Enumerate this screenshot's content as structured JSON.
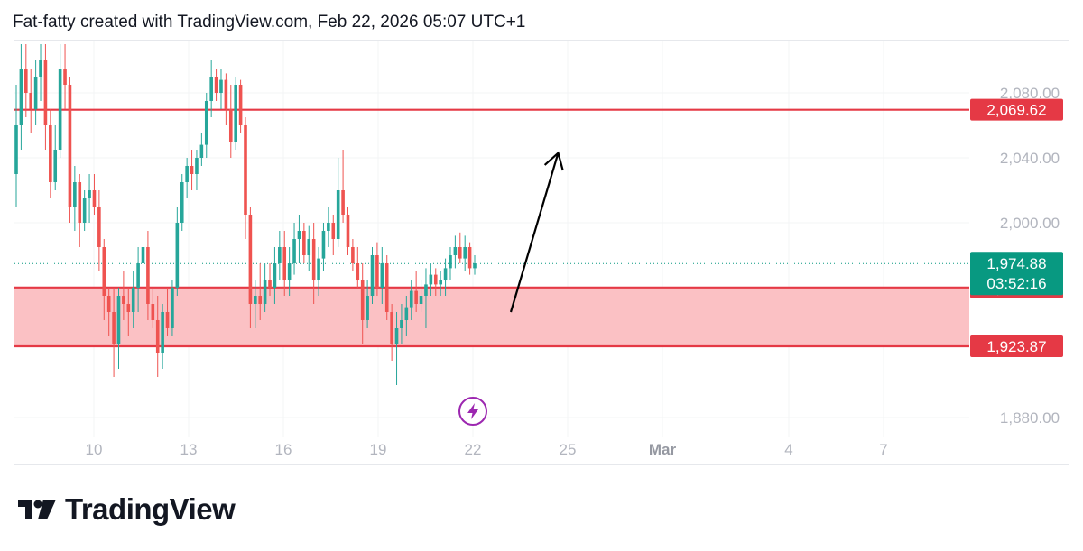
{
  "header": {
    "credit": "Fat-fatty created with TradingView.com, Feb 22, 2026 05:07 UTC+1"
  },
  "footer": {
    "brand": "TradingView"
  },
  "colors": {
    "up": "#26a69a",
    "down": "#ef5350",
    "level_line": "#e53945",
    "zone_fill": "#fbc1c4",
    "current_price": "#089981",
    "arrow": "#000000",
    "event_icon": "#9c27b0"
  },
  "chart_data": {
    "type": "candlestick",
    "y_axis": {
      "ticks": [
        2080,
        2040,
        2000,
        1880
      ],
      "tick_labels": [
        "2,080.00",
        "2,040.00",
        "2,000.00",
        "1,880.00"
      ]
    },
    "x_axis": {
      "tick_labels": [
        "10",
        "13",
        "16",
        "19",
        "22",
        "25",
        "Mar",
        "4",
        "7"
      ],
      "tick_dates": [
        "Feb 10",
        "Feb 13",
        "Feb 16",
        "Feb 19",
        "Feb 22",
        "Feb 25",
        "Mar 1",
        "Mar 4",
        "Mar 7"
      ]
    },
    "levels": [
      {
        "value": 2069.62,
        "label": "2,069.62"
      },
      {
        "value": 1960.11,
        "label": "1,960.11"
      },
      {
        "value": 1923.87,
        "label": "1,923.87"
      }
    ],
    "zone": {
      "top": 1960.11,
      "bottom": 1923.87
    },
    "current_price": {
      "value": 1974.88,
      "label": "1,974.88",
      "countdown": "03:52:16"
    },
    "arrow": {
      "from": {
        "date": "Feb 23.2",
        "value": 1945
      },
      "to": {
        "date": "Feb 24.7",
        "value": 2043
      }
    },
    "candles": [
      {
        "o": 2030,
        "h": 2085,
        "l": 2010,
        "c": 2060
      },
      {
        "o": 2060,
        "h": 2110,
        "l": 2045,
        "c": 2095
      },
      {
        "o": 2095,
        "h": 2110,
        "l": 2065,
        "c": 2080
      },
      {
        "o": 2080,
        "h": 2095,
        "l": 2055,
        "c": 2070
      },
      {
        "o": 2070,
        "h": 2100,
        "l": 2060,
        "c": 2090
      },
      {
        "o": 2090,
        "h": 2110,
        "l": 2075,
        "c": 2100
      },
      {
        "o": 2100,
        "h": 2110,
        "l": 2045,
        "c": 2060
      },
      {
        "o": 2060,
        "h": 2070,
        "l": 2015,
        "c": 2025
      },
      {
        "o": 2025,
        "h": 2060,
        "l": 2020,
        "c": 2045
      },
      {
        "o": 2045,
        "h": 2110,
        "l": 2040,
        "c": 2095
      },
      {
        "o": 2095,
        "h": 2110,
        "l": 2070,
        "c": 2085
      },
      {
        "o": 2085,
        "h": 2090,
        "l": 2000,
        "c": 2010
      },
      {
        "o": 2010,
        "h": 2035,
        "l": 1995,
        "c": 2025
      },
      {
        "o": 2025,
        "h": 2030,
        "l": 1985,
        "c": 2000
      },
      {
        "o": 2000,
        "h": 2020,
        "l": 1995,
        "c": 2015
      },
      {
        "o": 2015,
        "h": 2030,
        "l": 2000,
        "c": 2020
      },
      {
        "o": 2020,
        "h": 2030,
        "l": 2005,
        "c": 2010
      },
      {
        "o": 2010,
        "h": 2020,
        "l": 1970,
        "c": 1985
      },
      {
        "o": 1985,
        "h": 1990,
        "l": 1940,
        "c": 1955
      },
      {
        "o": 1955,
        "h": 1960,
        "l": 1930,
        "c": 1945
      },
      {
        "o": 1945,
        "h": 1960,
        "l": 1905,
        "c": 1925
      },
      {
        "o": 1925,
        "h": 1960,
        "l": 1910,
        "c": 1955
      },
      {
        "o": 1955,
        "h": 1970,
        "l": 1940,
        "c": 1950
      },
      {
        "o": 1950,
        "h": 1960,
        "l": 1930,
        "c": 1945
      },
      {
        "o": 1945,
        "h": 1970,
        "l": 1935,
        "c": 1960
      },
      {
        "o": 1960,
        "h": 1985,
        "l": 1945,
        "c": 1975
      },
      {
        "o": 1975,
        "h": 1995,
        "l": 1960,
        "c": 1985
      },
      {
        "o": 1985,
        "h": 1995,
        "l": 1940,
        "c": 1950
      },
      {
        "o": 1950,
        "h": 1960,
        "l": 1935,
        "c": 1940
      },
      {
        "o": 1940,
        "h": 1955,
        "l": 1905,
        "c": 1920
      },
      {
        "o": 1920,
        "h": 1950,
        "l": 1910,
        "c": 1945
      },
      {
        "o": 1945,
        "h": 1960,
        "l": 1930,
        "c": 1935
      },
      {
        "o": 1935,
        "h": 1965,
        "l": 1930,
        "c": 1960
      },
      {
        "o": 1960,
        "h": 2010,
        "l": 1955,
        "c": 2000
      },
      {
        "o": 2000,
        "h": 2030,
        "l": 1995,
        "c": 2025
      },
      {
        "o": 2025,
        "h": 2040,
        "l": 2015,
        "c": 2035
      },
      {
        "o": 2035,
        "h": 2045,
        "l": 2020,
        "c": 2030
      },
      {
        "o": 2030,
        "h": 2045,
        "l": 2020,
        "c": 2040
      },
      {
        "o": 2040,
        "h": 2055,
        "l": 2035,
        "c": 2048
      },
      {
        "o": 2048,
        "h": 2080,
        "l": 2040,
        "c": 2075
      },
      {
        "o": 2075,
        "h": 2100,
        "l": 2065,
        "c": 2090
      },
      {
        "o": 2090,
        "h": 2095,
        "l": 2075,
        "c": 2080
      },
      {
        "o": 2080,
        "h": 2095,
        "l": 2070,
        "c": 2088
      },
      {
        "o": 2088,
        "h": 2092,
        "l": 2060,
        "c": 2070
      },
      {
        "o": 2070,
        "h": 2085,
        "l": 2040,
        "c": 2050
      },
      {
        "o": 2050,
        "h": 2090,
        "l": 2045,
        "c": 2085
      },
      {
        "o": 2085,
        "h": 2088,
        "l": 2055,
        "c": 2060
      },
      {
        "o": 2060,
        "h": 2065,
        "l": 1990,
        "c": 2005
      },
      {
        "o": 2005,
        "h": 2010,
        "l": 1935,
        "c": 1950
      },
      {
        "o": 1950,
        "h": 1965,
        "l": 1935,
        "c": 1955
      },
      {
        "o": 1955,
        "h": 1975,
        "l": 1940,
        "c": 1950
      },
      {
        "o": 1950,
        "h": 1975,
        "l": 1945,
        "c": 1965
      },
      {
        "o": 1965,
        "h": 1975,
        "l": 1955,
        "c": 1960
      },
      {
        "o": 1960,
        "h": 1985,
        "l": 1950,
        "c": 1975
      },
      {
        "o": 1975,
        "h": 1995,
        "l": 1965,
        "c": 1985
      },
      {
        "o": 1985,
        "h": 1995,
        "l": 1955,
        "c": 1965
      },
      {
        "o": 1965,
        "h": 1985,
        "l": 1955,
        "c": 1975
      },
      {
        "o": 1975,
        "h": 2000,
        "l": 1968,
        "c": 1990
      },
      {
        "o": 1990,
        "h": 2005,
        "l": 1975,
        "c": 1995
      },
      {
        "o": 1995,
        "h": 2000,
        "l": 1975,
        "c": 1980
      },
      {
        "o": 1980,
        "h": 1998,
        "l": 1970,
        "c": 1990
      },
      {
        "o": 1990,
        "h": 2000,
        "l": 1950,
        "c": 1965
      },
      {
        "o": 1965,
        "h": 1985,
        "l": 1955,
        "c": 1978
      },
      {
        "o": 1978,
        "h": 2000,
        "l": 1970,
        "c": 1995
      },
      {
        "o": 1995,
        "h": 2010,
        "l": 1985,
        "c": 2000
      },
      {
        "o": 2000,
        "h": 2005,
        "l": 1980,
        "c": 1990
      },
      {
        "o": 1990,
        "h": 2040,
        "l": 1985,
        "c": 2020
      },
      {
        "o": 2020,
        "h": 2045,
        "l": 2000,
        "c": 2005
      },
      {
        "o": 2005,
        "h": 2010,
        "l": 1980,
        "c": 1985
      },
      {
        "o": 1985,
        "h": 1990,
        "l": 1970,
        "c": 1975
      },
      {
        "o": 1975,
        "h": 1985,
        "l": 1960,
        "c": 1965
      },
      {
        "o": 1965,
        "h": 1975,
        "l": 1925,
        "c": 1940
      },
      {
        "o": 1940,
        "h": 1965,
        "l": 1935,
        "c": 1955
      },
      {
        "o": 1955,
        "h": 1985,
        "l": 1950,
        "c": 1980
      },
      {
        "o": 1980,
        "h": 1988,
        "l": 1955,
        "c": 1960
      },
      {
        "o": 1960,
        "h": 1985,
        "l": 1950,
        "c": 1975
      },
      {
        "o": 1975,
        "h": 1980,
        "l": 1940,
        "c": 1945
      },
      {
        "o": 1945,
        "h": 1950,
        "l": 1915,
        "c": 1925
      },
      {
        "o": 1925,
        "h": 1945,
        "l": 1900,
        "c": 1935
      },
      {
        "o": 1935,
        "h": 1950,
        "l": 1925,
        "c": 1940
      },
      {
        "o": 1940,
        "h": 1955,
        "l": 1930,
        "c": 1948
      },
      {
        "o": 1948,
        "h": 1965,
        "l": 1940,
        "c": 1958
      },
      {
        "o": 1958,
        "h": 1970,
        "l": 1945,
        "c": 1950
      },
      {
        "o": 1950,
        "h": 1965,
        "l": 1945,
        "c": 1955
      },
      {
        "o": 1955,
        "h": 1972,
        "l": 1935,
        "c": 1962
      },
      {
        "o": 1962,
        "h": 1975,
        "l": 1955,
        "c": 1968
      },
      {
        "o": 1968,
        "h": 1972,
        "l": 1955,
        "c": 1962
      },
      {
        "o": 1962,
        "h": 1970,
        "l": 1955,
        "c": 1965
      },
      {
        "o": 1965,
        "h": 1978,
        "l": 1955,
        "c": 1972
      },
      {
        "o": 1972,
        "h": 1985,
        "l": 1965,
        "c": 1980
      },
      {
        "o": 1980,
        "h": 1992,
        "l": 1972,
        "c": 1985
      },
      {
        "o": 1985,
        "h": 1994,
        "l": 1975,
        "c": 1978
      },
      {
        "o": 1978,
        "h": 1992,
        "l": 1970,
        "c": 1985
      },
      {
        "o": 1985,
        "h": 1988,
        "l": 1968,
        "c": 1972
      },
      {
        "o": 1972,
        "h": 1980,
        "l": 1968,
        "c": 1975
      }
    ]
  }
}
